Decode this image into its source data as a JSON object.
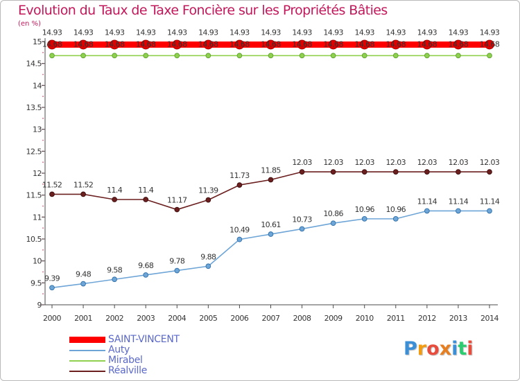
{
  "chart_data": {
    "type": "line",
    "title": "Evolution du Taux de Taxe Foncière sur les Propriétés Bâties",
    "ylabel": "(en %)",
    "xlabel": "",
    "ylim": [
      9,
      15
    ],
    "yticks": [
      "9",
      "9.5",
      "10",
      "10.5",
      "11",
      "11.5",
      "12",
      "12.5",
      "13",
      "13.5",
      "14",
      "14.5",
      "15"
    ],
    "categories": [
      "2000",
      "2001",
      "2002",
      "2003",
      "2004",
      "2005",
      "2006",
      "2007",
      "2008",
      "2009",
      "2010",
      "2011",
      "2012",
      "2013",
      "2014"
    ],
    "series": [
      {
        "name": "SAINT-VINCENT",
        "color": "#ff0000",
        "values": [
          14.93,
          14.93,
          14.93,
          14.93,
          14.93,
          14.93,
          14.93,
          14.93,
          14.93,
          14.93,
          14.93,
          14.93,
          14.93,
          14.93,
          14.93
        ],
        "labels": [
          "14.93",
          "14.93",
          "14.93",
          "14.93",
          "14.93",
          "14.93",
          "14.93",
          "14.93",
          "14.93",
          "14.93",
          "14.93",
          "14.93",
          "14.93",
          "14.93",
          "14.93"
        ]
      },
      {
        "name": "Auty",
        "color": "#6ea5d7",
        "values": [
          9.39,
          9.48,
          9.58,
          9.68,
          9.78,
          9.88,
          10.49,
          10.61,
          10.73,
          10.86,
          10.96,
          10.96,
          11.14,
          11.14,
          11.14
        ],
        "labels": [
          "9.39",
          "9.48",
          "9.58",
          "9.68",
          "9.78",
          "9.88",
          "10.49",
          "10.61",
          "10.73",
          "10.86",
          "10.96",
          "10.96",
          "11.14",
          "11.14",
          "11.14"
        ]
      },
      {
        "name": "Mirabel",
        "color": "#8fd14f",
        "values": [
          14.68,
          14.68,
          14.68,
          14.68,
          14.68,
          14.68,
          14.68,
          14.68,
          14.68,
          14.68,
          14.68,
          14.68,
          14.68,
          14.68,
          14.68
        ],
        "labels": [
          "14.68",
          "14.68",
          "14.68",
          "14.68",
          "14.68",
          "14.68",
          "14.68",
          "14.68",
          "14.68",
          "14.68",
          "14.68",
          "14.68",
          "14.68",
          "14.68",
          "14.68"
        ]
      },
      {
        "name": "Réalville",
        "color": "#6b1f1f",
        "values": [
          11.52,
          11.52,
          11.4,
          11.4,
          11.17,
          11.39,
          11.73,
          11.85,
          12.03,
          12.03,
          12.03,
          12.03,
          12.03,
          12.03,
          12.03
        ],
        "labels": [
          "11.52",
          "11.52",
          "11.4",
          "11.4",
          "11.17",
          "11.39",
          "11.73",
          "11.85",
          "12.03",
          "12.03",
          "12.03",
          "12.03",
          "12.03",
          "12.03",
          "12.03"
        ]
      }
    ]
  },
  "logo": {
    "text": "Proxiti",
    "colors": [
      "#3b8fd6",
      "#f39c12",
      "#e74c3c",
      "#e67e22",
      "#3b8fd6",
      "#2ecc71",
      "#e74c3c"
    ]
  }
}
